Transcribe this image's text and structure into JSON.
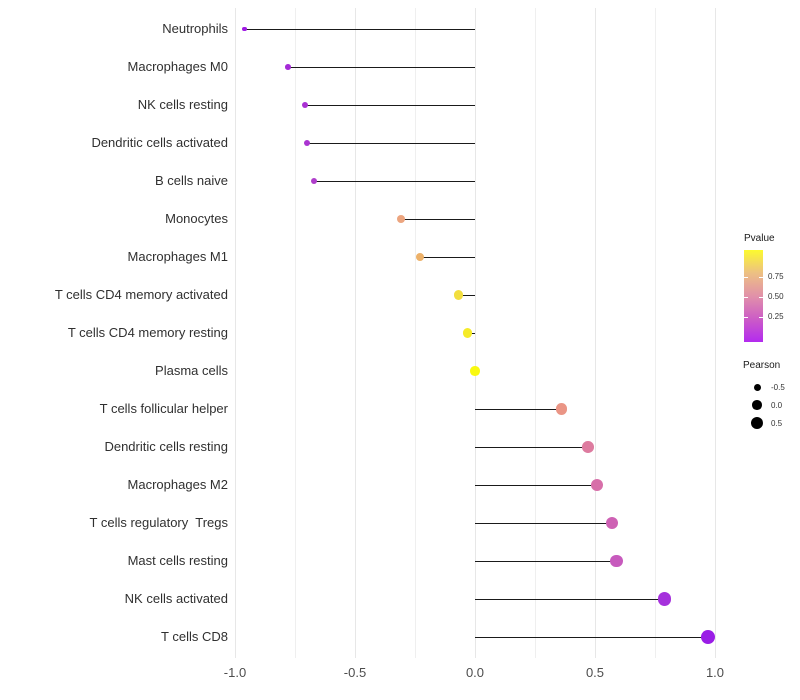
{
  "chart_data": {
    "type": "scatter",
    "variant": "lollipop",
    "title": "",
    "xlabel": "",
    "ylabel": "",
    "x_ticks": [
      "-1.0",
      "-0.5",
      "0.0",
      "0.5",
      "1.0"
    ],
    "x_gridline_values": [
      -1.0,
      -0.75,
      -0.5,
      -0.25,
      0.0,
      0.25,
      0.5,
      0.75,
      1.0
    ],
    "xlim": [
      -1.01,
      1.1
    ],
    "grid": "vertical-only",
    "categories": [
      "Neutrophils",
      "Macrophages M0",
      "NK cells resting",
      "Dendritic cells activated",
      "B cells naive",
      "Monocytes",
      "Macrophages M1",
      "T cells CD4 memory activated",
      "T cells CD4 memory resting",
      "Plasma cells",
      "T cells follicular helper",
      "Dendritic cells resting",
      "Macrophages M2",
      "T cells regulatory  Tregs",
      "Mast cells resting",
      "NK cells activated",
      "T cells CD8"
    ],
    "points": [
      {
        "label": "Neutrophils",
        "pearson": -0.96,
        "color": "#9F1AE3"
      },
      {
        "label": "Macrophages M0",
        "pearson": -0.78,
        "color": "#A52BD7"
      },
      {
        "label": "NK cells resting",
        "pearson": -0.71,
        "color": "#A931D3"
      },
      {
        "label": "Dendritic cells activated",
        "pearson": -0.7,
        "color": "#AA34D1"
      },
      {
        "label": "B cells naive",
        "pearson": -0.67,
        "color": "#AF3ECB"
      },
      {
        "label": "Monocytes",
        "pearson": -0.31,
        "color": "#ECA57F"
      },
      {
        "label": "Macrophages M1",
        "pearson": -0.23,
        "color": "#EDB169"
      },
      {
        "label": "T cells CD4 memory activated",
        "pearson": -0.07,
        "color": "#F2DE3F"
      },
      {
        "label": "T cells CD4 memory resting",
        "pearson": -0.03,
        "color": "#F5EB28"
      },
      {
        "label": "Plasma cells",
        "pearson": 0.0,
        "color": "#F9F910"
      },
      {
        "label": "T cells follicular helper",
        "pearson": 0.36,
        "color": "#EA9585"
      },
      {
        "label": "Dendritic cells resting",
        "pearson": 0.47,
        "color": "#DD7B9F"
      },
      {
        "label": "Macrophages M2",
        "pearson": 0.51,
        "color": "#D76FA9"
      },
      {
        "label": "T cells regulatory  Tregs",
        "pearson": 0.57,
        "color": "#CE61B4"
      },
      {
        "label": "Mast cells resting",
        "pearson": 0.59,
        "color": "#C75ABD"
      },
      {
        "label": "NK cells activated",
        "pearson": 0.79,
        "color": "#A531DC"
      },
      {
        "label": "T cells CD8",
        "pearson": 0.97,
        "color": "#9A1DE6"
      }
    ],
    "legends": {
      "pvalue": {
        "title": "Pvalue",
        "tick_labels": [
          "0.75",
          "0.50",
          "0.25"
        ],
        "gradient_bottom_to_top": [
          "#B32BEF",
          "#CC5CC6",
          "#E191A9",
          "#EDC083",
          "#FCFA2F"
        ],
        "position": "right"
      },
      "pearson": {
        "title": "Pearson",
        "entries": [
          {
            "label": "-0.5",
            "value": -0.5
          },
          {
            "label": "0.0",
            "value": 0.0
          },
          {
            "label": "0.5",
            "value": 0.5
          }
        ],
        "dot_color": "#000000",
        "position": "right"
      }
    },
    "stem_color": "#1a1a1a",
    "background": "#ffffff"
  }
}
